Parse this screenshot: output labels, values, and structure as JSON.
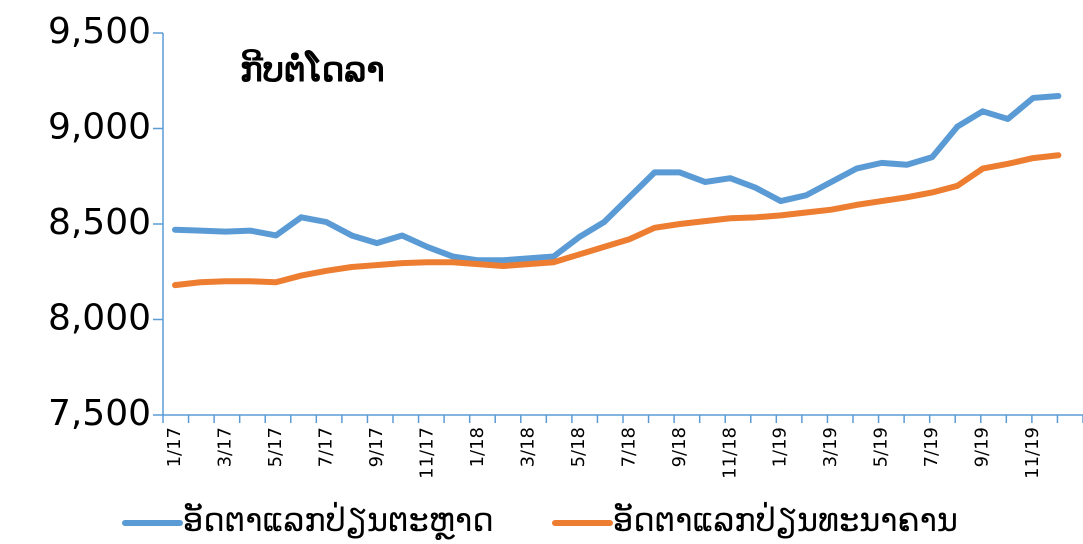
{
  "chart_data": {
    "type": "line",
    "title": "ກີບຕໍ່ໂດລາ",
    "categories": [
      "1/17",
      null,
      "3/17",
      null,
      "5/17",
      null,
      "7/17",
      null,
      "9/17",
      null,
      "11/17",
      null,
      "1/18",
      null,
      "3/18",
      null,
      "5/18",
      null,
      "7/18",
      null,
      "9/18",
      null,
      "11/18",
      null,
      "1/19",
      null,
      "3/19",
      null,
      "5/19",
      null,
      "7/19",
      null,
      "9/19",
      null,
      "11/19",
      null
    ],
    "series": [
      {
        "name": "ອັດຕາແລກປ່ຽນຕະຫຼາດ",
        "color": "#5b9bd5",
        "values": [
          8470,
          8465,
          8460,
          8465,
          8440,
          8535,
          8510,
          8440,
          8400,
          8440,
          8380,
          8330,
          8310,
          8310,
          8320,
          8330,
          8430,
          8510,
          8640,
          8770,
          8770,
          8720,
          8740,
          8690,
          8620,
          8650,
          8720,
          8790,
          8820,
          8810,
          8850,
          9010,
          9090,
          9050,
          9160,
          9170
        ]
      },
      {
        "name": "ອັດຕາແລກປ່ຽນທະນາຄານ",
        "color": "#ed7d31",
        "values": [
          8180,
          8195,
          8200,
          8200,
          8195,
          8230,
          8255,
          8275,
          8285,
          8295,
          8300,
          8300,
          8290,
          8280,
          8290,
          8300,
          8340,
          8380,
          8420,
          8480,
          8500,
          8515,
          8530,
          8535,
          8545,
          8560,
          8575,
          8600,
          8620,
          8640,
          8665,
          8700,
          8790,
          8815,
          8845,
          8860
        ]
      }
    ],
    "ylim": [
      7500,
      9500
    ],
    "yticks": [
      {
        "value": 7500,
        "label": "7,500"
      },
      {
        "value": 8000,
        "label": "8,000"
      },
      {
        "value": 8500,
        "label": "8,500"
      },
      {
        "value": 9000,
        "label": "9,000"
      },
      {
        "value": 9500,
        "label": "9,500"
      }
    ],
    "legend": "bottom"
  }
}
